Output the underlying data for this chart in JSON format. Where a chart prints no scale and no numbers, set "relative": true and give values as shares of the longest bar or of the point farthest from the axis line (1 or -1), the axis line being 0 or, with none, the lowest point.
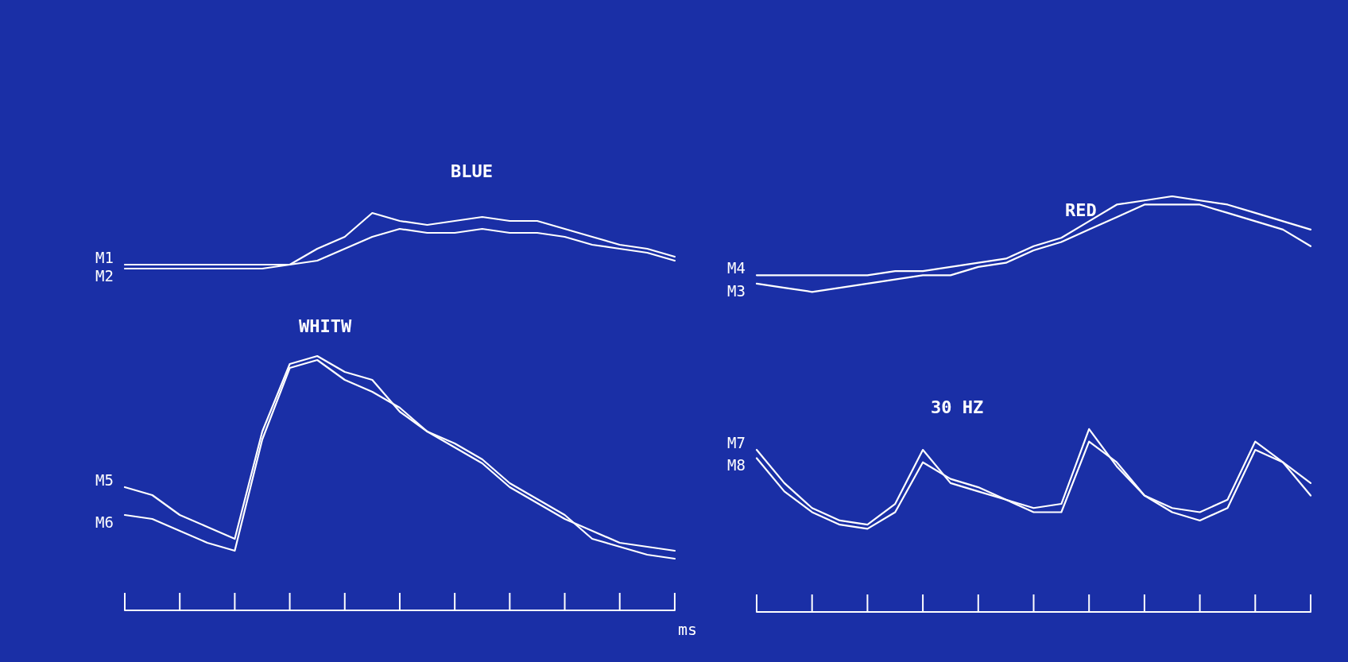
{
  "chart_data": [
    {
      "type": "line",
      "relative": true,
      "xlabel": "ms",
      "annotations": [
        "BLUE",
        "WHITW"
      ],
      "marker": "none",
      "line_style": "solid",
      "grid": false,
      "legend": false,
      "categories": [
        null,
        null,
        null,
        null,
        null,
        null,
        null,
        null,
        null,
        null,
        null,
        null,
        null,
        null,
        null,
        null,
        null,
        null,
        null,
        null,
        null
      ],
      "series": [
        {
          "name": "M1",
          "color": "#ffffff",
          "values": [
            0.87,
            0.87,
            0.87,
            0.87,
            0.87,
            0.87,
            0.87,
            0.91,
            0.94,
            1.0,
            0.98,
            0.97,
            0.98,
            0.99,
            0.98,
            0.98,
            0.96,
            0.94,
            0.92,
            0.91,
            0.89
          ]
        },
        {
          "name": "M2",
          "color": "#ffffff",
          "values": [
            0.86,
            0.86,
            0.86,
            0.86,
            0.86,
            0.86,
            0.87,
            0.88,
            0.91,
            0.94,
            0.96,
            0.95,
            0.95,
            0.96,
            0.95,
            0.95,
            0.94,
            0.92,
            0.91,
            0.9,
            0.88
          ]
        },
        {
          "name": "M5",
          "color": "#ffffff",
          "values": [
            0.31,
            0.29,
            0.24,
            0.21,
            0.18,
            0.45,
            0.62,
            0.64,
            0.6,
            0.58,
            0.5,
            0.45,
            0.41,
            0.37,
            0.31,
            0.27,
            0.23,
            0.2,
            0.17,
            0.16,
            0.15
          ]
        },
        {
          "name": "M6",
          "color": "#ffffff",
          "values": [
            0.24,
            0.23,
            0.2,
            0.17,
            0.15,
            0.43,
            0.61,
            0.63,
            0.58,
            0.55,
            0.51,
            0.45,
            0.42,
            0.38,
            0.32,
            0.28,
            0.24,
            0.18,
            0.16,
            0.14,
            0.13
          ]
        }
      ]
    },
    {
      "type": "line",
      "relative": true,
      "annotations": [
        "RED",
        "30 HZ"
      ],
      "marker": "none",
      "line_style": "solid",
      "grid": false,
      "legend": false,
      "categories": [
        null,
        null,
        null,
        null,
        null,
        null,
        null,
        null,
        null,
        null,
        null,
        null,
        null,
        null,
        null,
        null,
        null,
        null,
        null,
        null,
        null
      ],
      "series": [
        {
          "name": "M4",
          "color": "#ffffff",
          "values": [
            0.81,
            0.81,
            0.81,
            0.81,
            0.81,
            0.82,
            0.82,
            0.83,
            0.84,
            0.85,
            0.88,
            0.9,
            0.94,
            0.98,
            0.99,
            1.0,
            0.99,
            0.98,
            0.96,
            0.94,
            0.92
          ]
        },
        {
          "name": "M3",
          "color": "#ffffff",
          "values": [
            0.79,
            0.78,
            0.77,
            0.78,
            0.79,
            0.8,
            0.81,
            0.81,
            0.83,
            0.84,
            0.87,
            0.89,
            0.92,
            0.95,
            0.98,
            0.98,
            0.98,
            0.96,
            0.94,
            0.92,
            0.88
          ]
        },
        {
          "name": "M7",
          "color": "#ffffff",
          "values": [
            0.39,
            0.31,
            0.25,
            0.22,
            0.21,
            0.26,
            0.39,
            0.31,
            0.29,
            0.27,
            0.25,
            0.26,
            0.44,
            0.35,
            0.28,
            0.25,
            0.24,
            0.27,
            0.41,
            0.36,
            0.31
          ]
        },
        {
          "name": "M8",
          "color": "#ffffff",
          "values": [
            0.37,
            0.29,
            0.24,
            0.21,
            0.2,
            0.24,
            0.36,
            0.32,
            0.3,
            0.27,
            0.24,
            0.24,
            0.41,
            0.36,
            0.28,
            0.24,
            0.22,
            0.25,
            0.39,
            0.36,
            0.28
          ]
        }
      ]
    }
  ]
}
